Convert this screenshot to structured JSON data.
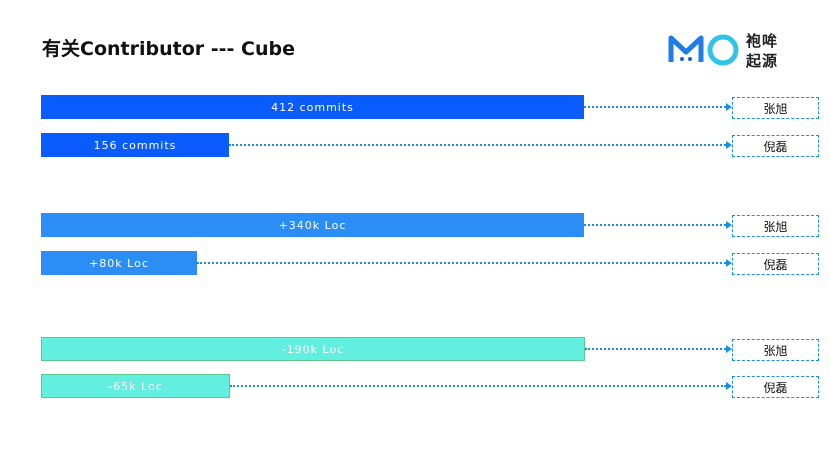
{
  "header": {
    "title": "有关Contributor --- Cube",
    "logo_line1": "袍哞",
    "logo_line2": "起源"
  },
  "rows": [
    {
      "label": "412 commits",
      "name": "张旭"
    },
    {
      "label": "156 commits",
      "name": "倪磊"
    },
    {
      "label": "+340k Loc",
      "name": "张旭"
    },
    {
      "label": "+80k Loc",
      "name": "倪磊"
    },
    {
      "label": "-190k Loc",
      "name": "张旭"
    },
    {
      "label": "-65k Loc",
      "name": "倪磊"
    }
  ]
}
